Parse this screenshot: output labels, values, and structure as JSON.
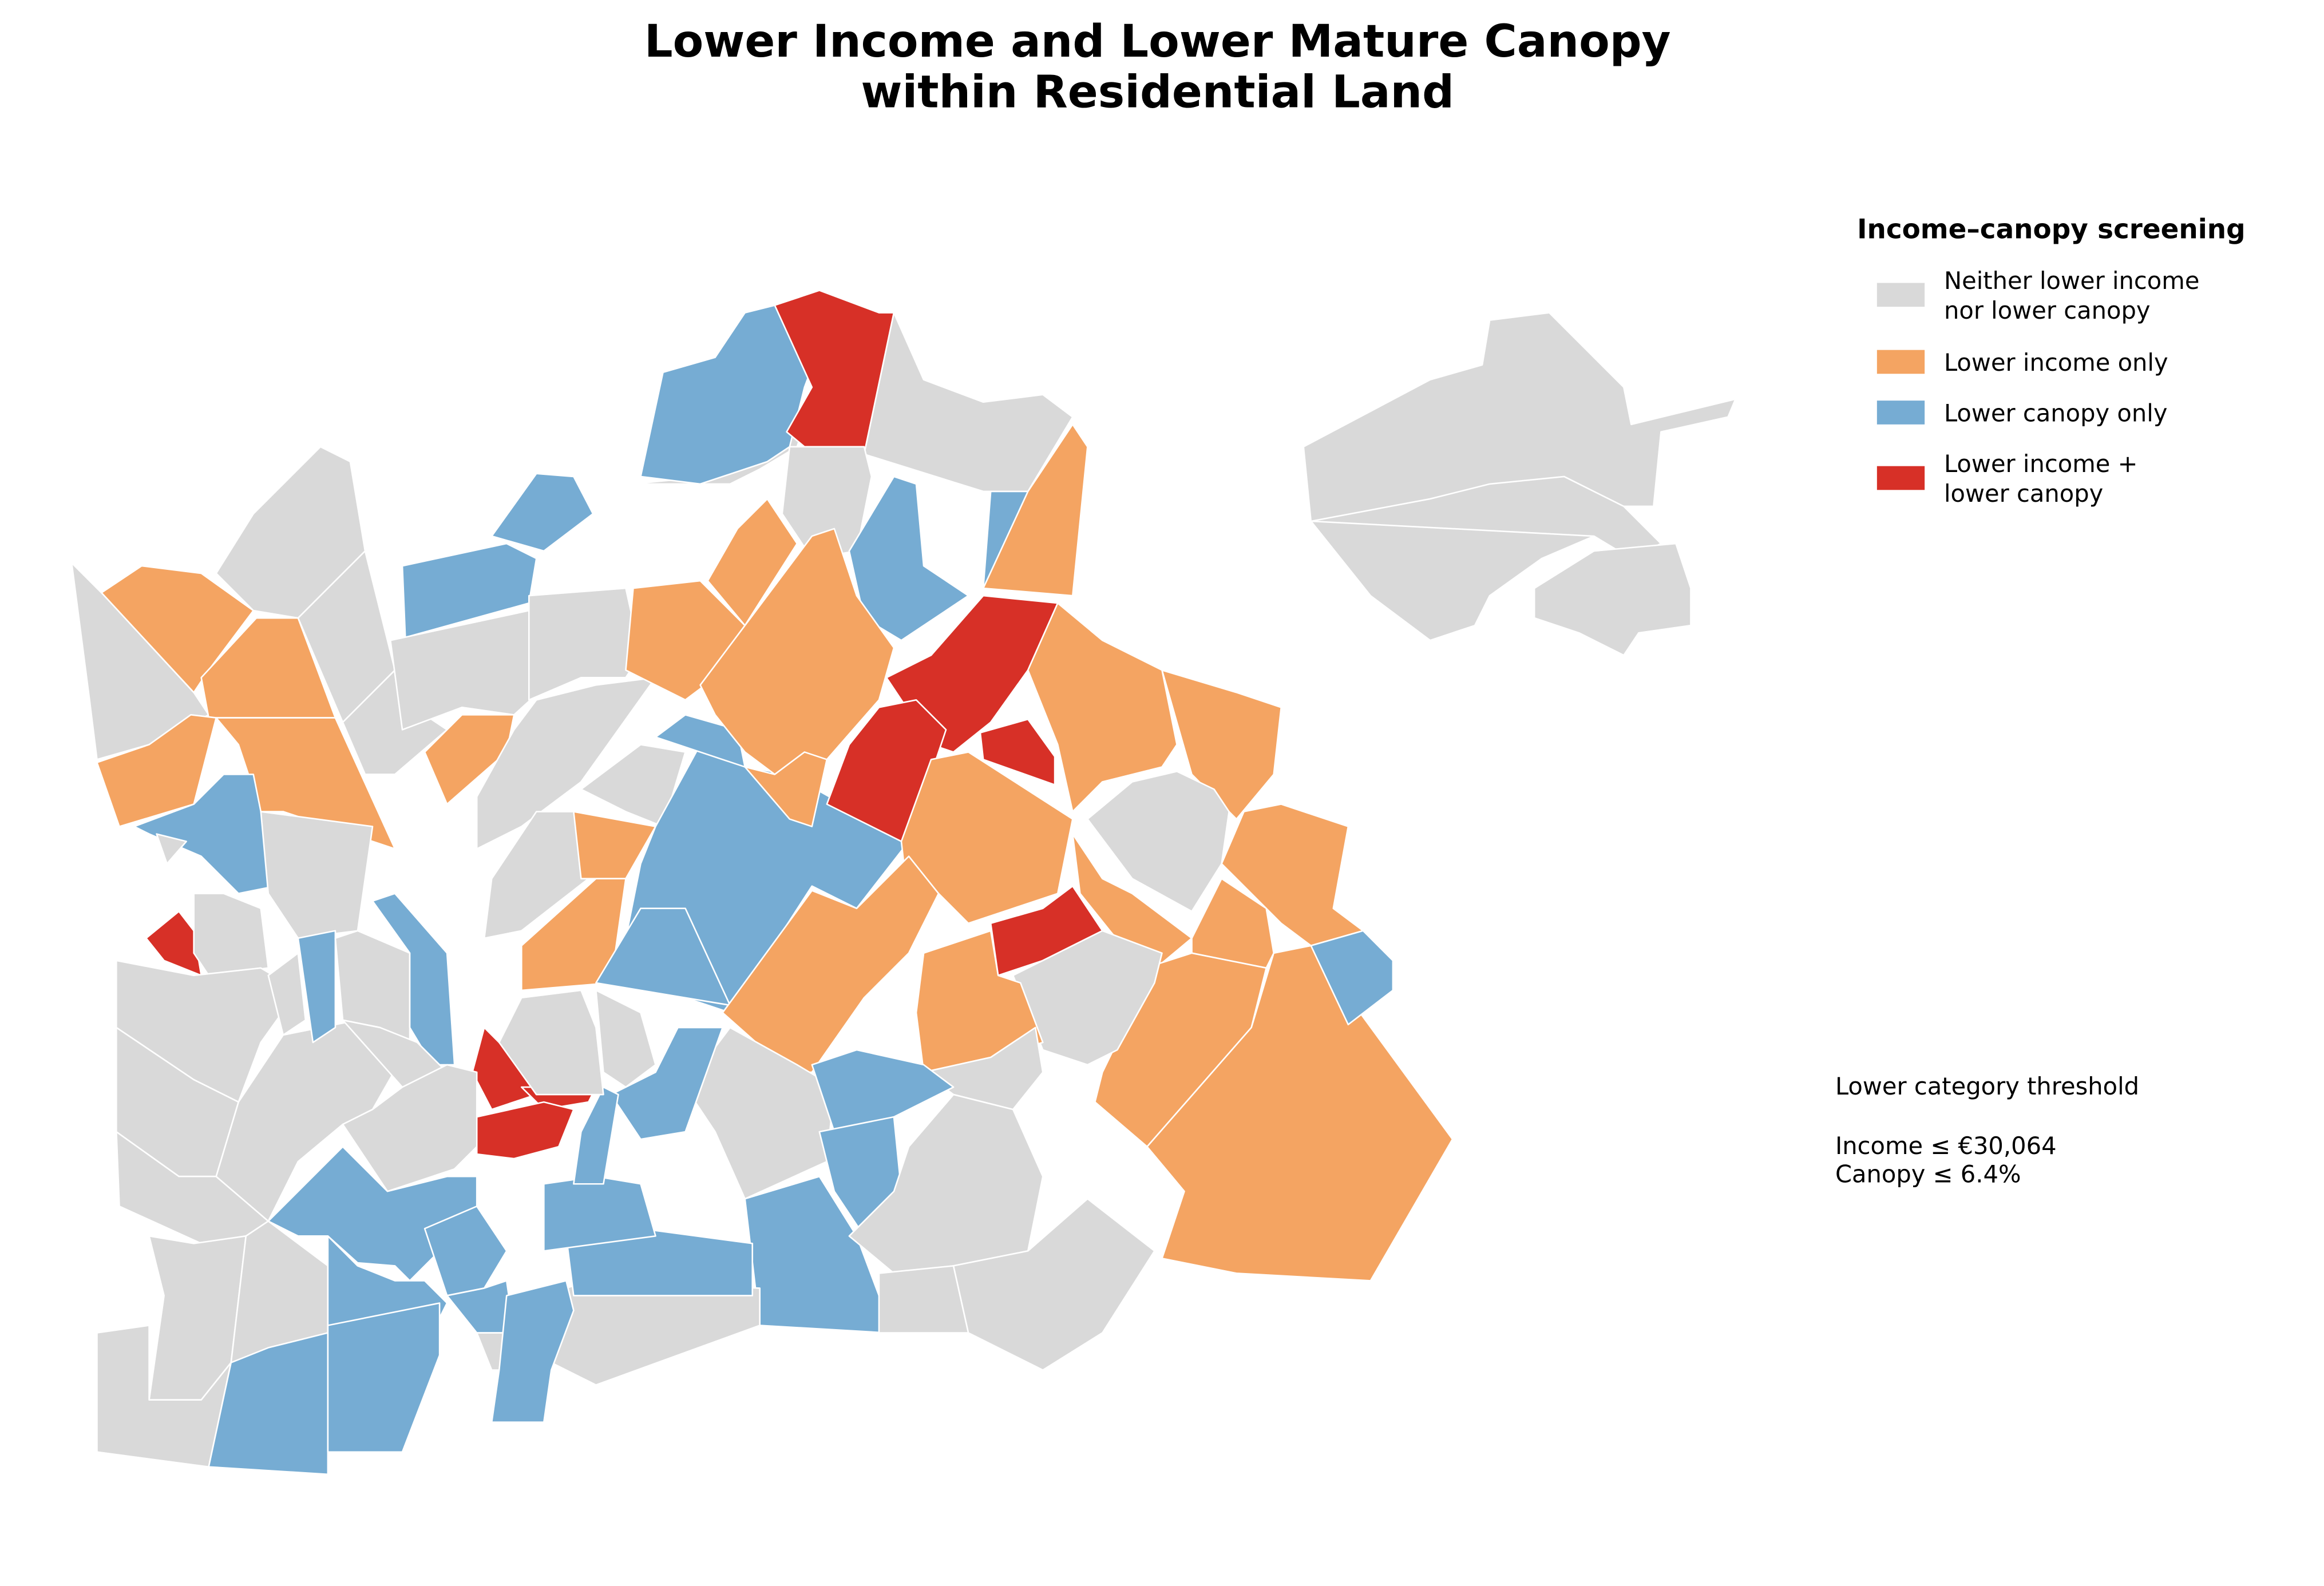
{
  "title_lines": [
    "Lower Income and Lower Mature Canopy",
    "within Residential Land"
  ],
  "legend": {
    "title": "Income–canopy screening",
    "items": [
      {
        "label_lines": [
          "Neither lower income",
          "nor lower canopy"
        ],
        "color": "#d9d9d9"
      },
      {
        "label_lines": [
          "Lower income only"
        ],
        "color": "#f4a462"
      },
      {
        "label_lines": [
          "Lower canopy only"
        ],
        "color": "#76acd3"
      },
      {
        "label_lines": [
          "Lower income +",
          "lower canopy"
        ],
        "color": "#d73027"
      }
    ]
  },
  "note": {
    "heading": "Lower category threshold",
    "lines": [
      "Income ≤ €30,064",
      "Canopy ≤ 6.4%"
    ]
  }
}
